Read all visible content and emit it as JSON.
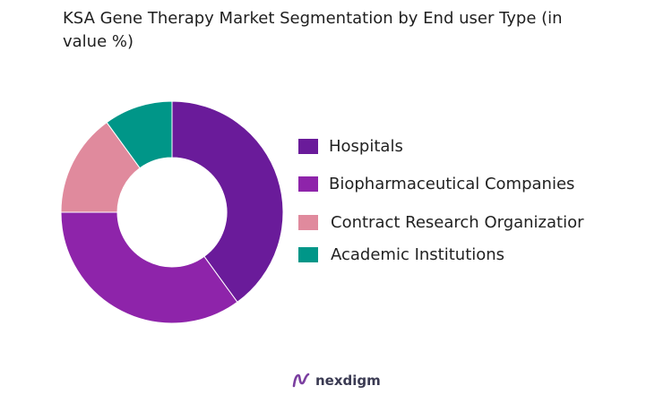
{
  "chart_data": {
    "type": "pie",
    "title": "KSA Gene Therapy Market Segmentation by End user Type (in value %)",
    "donut": true,
    "legend_position": "right",
    "categories": [
      "Hospitals",
      "Biopharmaceutical Companies",
      "Contract Research Organizatior",
      "Academic Institutions"
    ],
    "values": [
      40,
      35,
      15,
      10
    ],
    "colors": [
      "#6a1b9a",
      "#8e24aa",
      "#e08a9d",
      "#009688"
    ]
  },
  "brand": {
    "name": "nexdigm",
    "logo_icon": "nexdigm-logo-icon",
    "logo_color": "#7b3fa0"
  }
}
